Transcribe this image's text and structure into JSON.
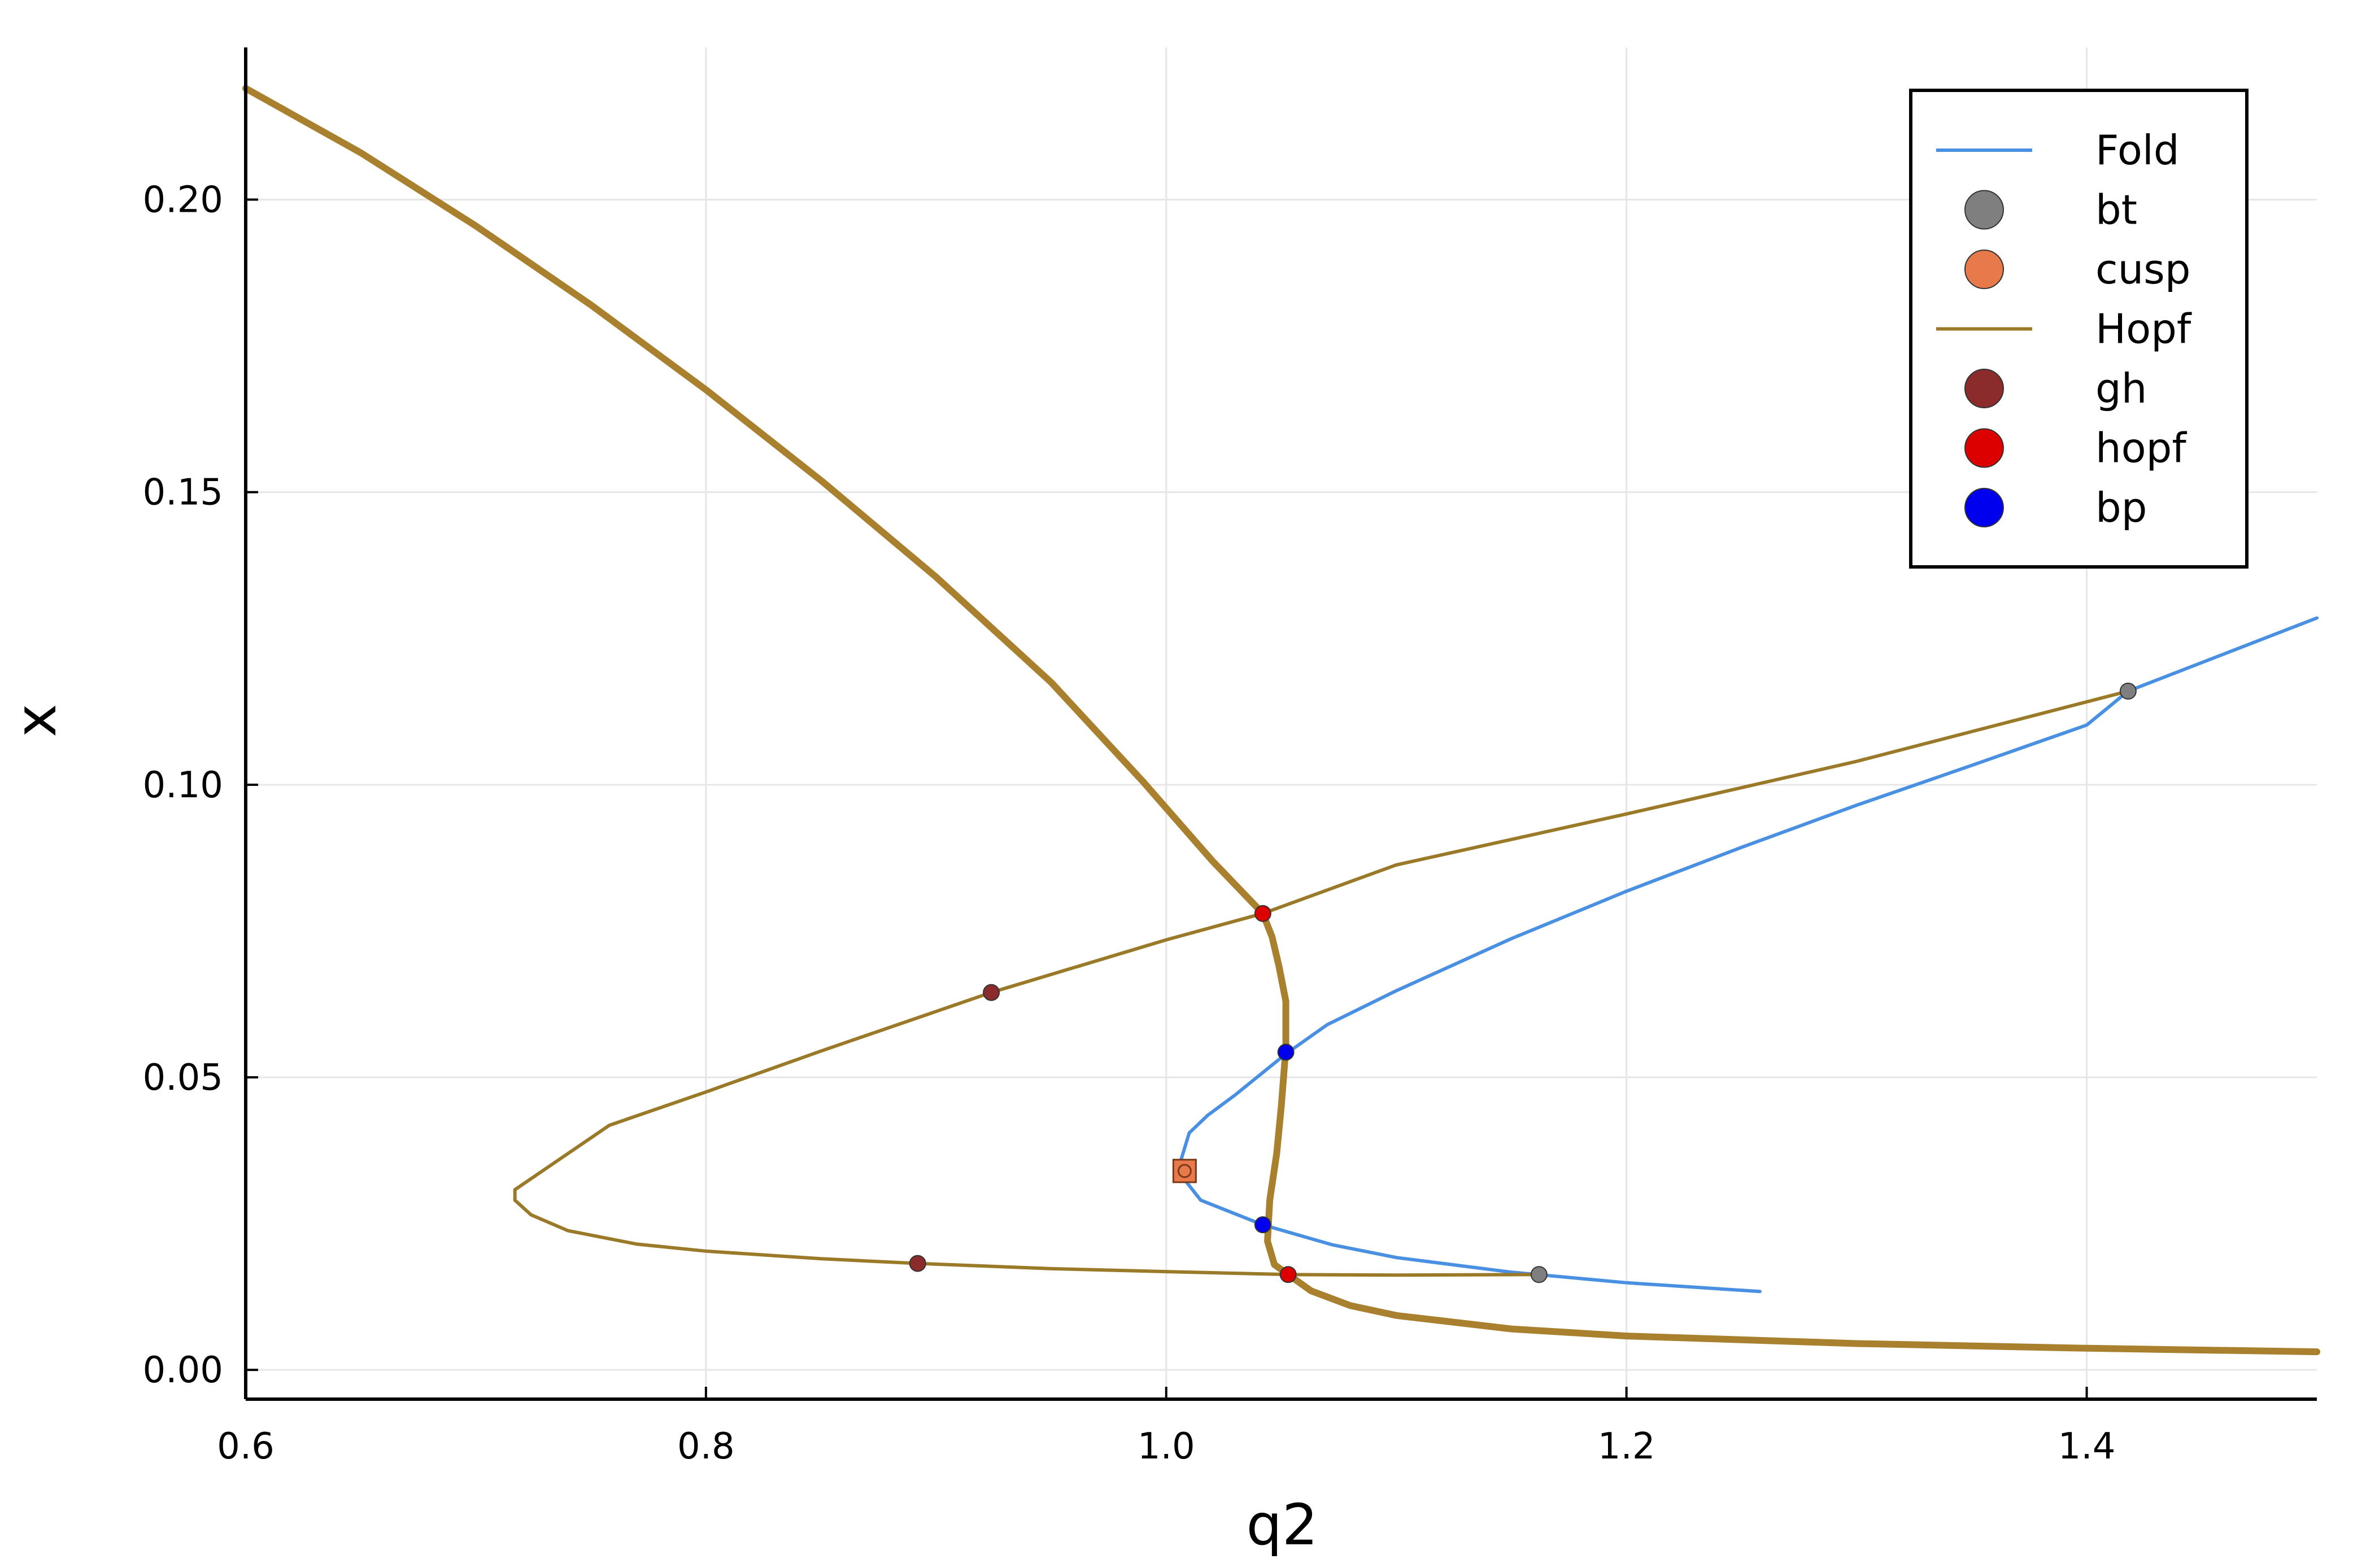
{
  "chart_data": {
    "type": "line",
    "xlabel": "q2",
    "ylabel": "x",
    "xlim": [
      0.6,
      1.5
    ],
    "ylim": [
      -0.005,
      0.226
    ],
    "x_ticks": [
      0.6,
      0.8,
      1.0,
      1.2,
      1.4
    ],
    "x_tick_labels": [
      "0.6",
      "0.8",
      "1.0",
      "1.2",
      "1.4"
    ],
    "y_ticks": [
      0.0,
      0.05,
      0.1,
      0.15,
      0.2
    ],
    "y_tick_labels": [
      "0.00",
      "0.05",
      "0.10",
      "0.15",
      "0.20"
    ],
    "grid": true,
    "legend_position": "top-right",
    "series": [
      {
        "name": "Fold",
        "kind": "line",
        "color": "#4a90e2",
        "points": [
          [
            1.005,
            0.034
          ],
          [
            1.015,
            0.029
          ],
          [
            1.042,
            0.0248
          ],
          [
            1.072,
            0.0214
          ],
          [
            1.1,
            0.0192
          ],
          [
            1.15,
            0.0167
          ],
          [
            1.2,
            0.0149
          ],
          [
            1.258,
            0.0134
          ]
        ]
      },
      {
        "name": "Fold",
        "kind": "line",
        "color": "#4a90e2",
        "points": [
          [
            1.005,
            0.034
          ],
          [
            1.01,
            0.0405
          ],
          [
            1.018,
            0.0435
          ],
          [
            1.03,
            0.047
          ],
          [
            1.052,
            0.054
          ],
          [
            1.07,
            0.059
          ],
          [
            1.1,
            0.0648
          ],
          [
            1.15,
            0.0737
          ],
          [
            1.2,
            0.0818
          ],
          [
            1.25,
            0.0893
          ],
          [
            1.3,
            0.0965
          ],
          [
            1.35,
            0.1033
          ],
          [
            1.4,
            0.1102
          ],
          [
            1.418,
            0.116
          ],
          [
            1.5,
            0.1285
          ]
        ]
      },
      {
        "name": "Hopf",
        "kind": "line",
        "color": "#a8802e",
        "emphasis": "thick",
        "points": [
          [
            0.6,
            0.219
          ],
          [
            0.65,
            0.208
          ],
          [
            0.7,
            0.1955
          ],
          [
            0.75,
            0.182
          ],
          [
            0.8,
            0.1675
          ],
          [
            0.85,
            0.152
          ],
          [
            0.9,
            0.1355
          ],
          [
            0.95,
            0.1175
          ],
          [
            0.99,
            0.1005
          ],
          [
            1.02,
            0.087
          ],
          [
            1.042,
            0.078
          ],
          [
            1.046,
            0.074
          ],
          [
            1.049,
            0.069
          ],
          [
            1.052,
            0.063
          ],
          [
            1.052,
            0.055
          ],
          [
            1.05,
            0.045
          ],
          [
            1.048,
            0.037
          ],
          [
            1.045,
            0.029
          ],
          [
            1.044,
            0.022
          ],
          [
            1.047,
            0.018
          ],
          [
            1.053,
            0.0163
          ],
          [
            1.063,
            0.0135
          ],
          [
            1.08,
            0.011
          ],
          [
            1.1,
            0.0093
          ],
          [
            1.15,
            0.007
          ],
          [
            1.2,
            0.0058
          ],
          [
            1.3,
            0.0045
          ],
          [
            1.4,
            0.0037
          ],
          [
            1.5,
            0.0031
          ]
        ]
      },
      {
        "name": "Hopf",
        "kind": "line",
        "color": "#9a7a28",
        "points": [
          [
            1.418,
            0.116
          ],
          [
            1.3,
            0.104
          ],
          [
            1.2,
            0.095
          ],
          [
            1.1,
            0.0863
          ],
          [
            1.042,
            0.078
          ],
          [
            1.0,
            0.0735
          ],
          [
            0.924,
            0.0645
          ],
          [
            0.85,
            0.0545
          ],
          [
            0.8,
            0.0475
          ],
          [
            0.758,
            0.0418
          ],
          [
            0.717,
            0.0308
          ],
          [
            0.717,
            0.029
          ],
          [
            0.724,
            0.0265
          ],
          [
            0.74,
            0.0238
          ],
          [
            0.77,
            0.0215
          ],
          [
            0.8,
            0.0203
          ],
          [
            0.85,
            0.019
          ],
          [
            0.892,
            0.0182
          ],
          [
            0.95,
            0.0173
          ],
          [
            1.0,
            0.0168
          ],
          [
            1.053,
            0.0163
          ],
          [
            1.1,
            0.0162
          ],
          [
            1.162,
            0.0163
          ]
        ]
      },
      {
        "name": "bt",
        "kind": "markers",
        "color": "#7f7f7f",
        "points": [
          [
            1.162,
            0.0163
          ],
          [
            1.418,
            0.116
          ]
        ]
      },
      {
        "name": "cusp",
        "kind": "markers",
        "color": "#e8794a",
        "points": [
          [
            1.008,
            0.034
          ]
        ]
      },
      {
        "name": "gh",
        "kind": "markers",
        "color": "#8b2b2b",
        "points": [
          [
            0.924,
            0.0645
          ],
          [
            0.892,
            0.0182
          ]
        ]
      },
      {
        "name": "hopf",
        "kind": "markers",
        "color": "#dd0000",
        "points": [
          [
            1.042,
            0.078
          ],
          [
            1.053,
            0.0163
          ]
        ]
      },
      {
        "name": "bp",
        "kind": "markers",
        "color": "#0000ee",
        "points": [
          [
            1.052,
            0.0543
          ],
          [
            1.042,
            0.0248
          ]
        ]
      }
    ],
    "legend": [
      {
        "label": "Fold",
        "kind": "line",
        "color": "#4a90e2"
      },
      {
        "label": "bt",
        "kind": "marker",
        "color": "#7f7f7f"
      },
      {
        "label": "cusp",
        "kind": "marker",
        "color": "#e8794a"
      },
      {
        "label": "Hopf",
        "kind": "line",
        "color": "#9a7a28"
      },
      {
        "label": "gh",
        "kind": "marker",
        "color": "#8b2b2b"
      },
      {
        "label": "hopf",
        "kind": "marker",
        "color": "#dd0000"
      },
      {
        "label": "bp",
        "kind": "marker",
        "color": "#0000ee"
      }
    ]
  }
}
